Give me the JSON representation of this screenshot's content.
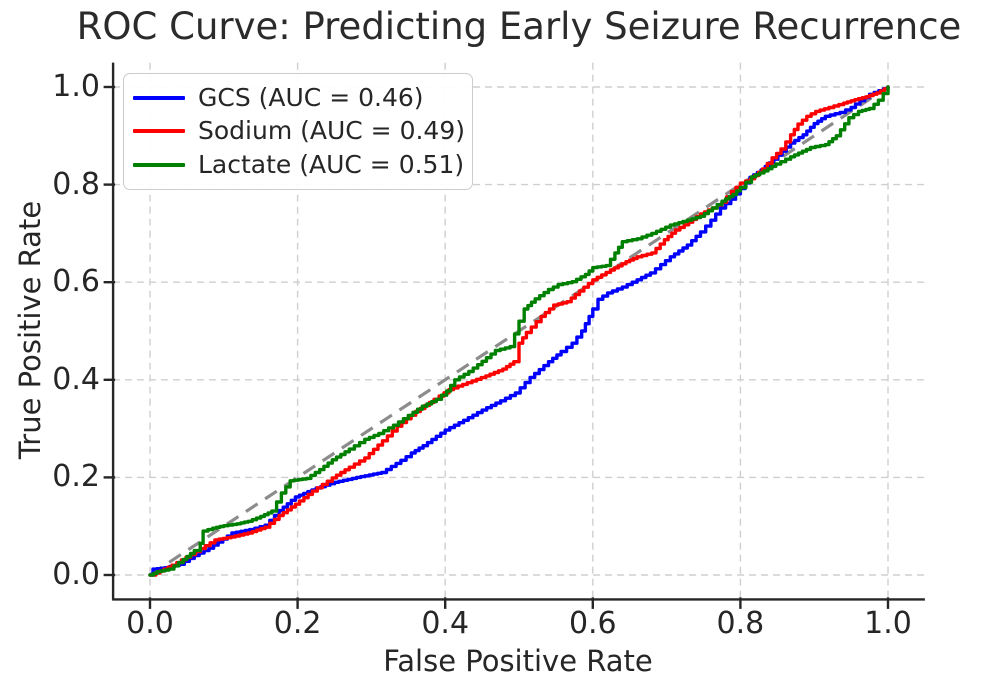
{
  "chart_data": {
    "type": "line",
    "subtype": "roc-curve",
    "title": "ROC Curve: Predicting Early Seizure Recurrence",
    "xlabel": "False Positive Rate",
    "ylabel": "True Positive Rate",
    "xlim": [
      -0.05,
      1.05
    ],
    "ylim": [
      -0.05,
      1.05
    ],
    "grid": true,
    "grid_style": "dashed",
    "legend_position": "upper left",
    "x_tick_values": [
      0.0,
      0.2,
      0.4,
      0.6,
      0.8,
      1.0
    ],
    "x_tick_labels": [
      "0.0",
      "0.2",
      "0.4",
      "0.6",
      "0.8",
      "1.0"
    ],
    "y_tick_values": [
      0.0,
      0.2,
      0.4,
      0.6,
      0.8,
      1.0
    ],
    "y_tick_labels": [
      "0.0",
      "0.2",
      "0.4",
      "0.6",
      "0.8",
      "1.0"
    ],
    "reference_line": {
      "name": "chance-diagonal",
      "style": "dashed",
      "color": "#8c8c8c",
      "points": [
        [
          0,
          0
        ],
        [
          1,
          1
        ]
      ]
    },
    "series": [
      {
        "name": "GCS (AUC = 0.46)",
        "metric": "GCS",
        "auc": 0.46,
        "color": "#0000ff",
        "points": [
          [
            0,
            0
          ],
          [
            0.004,
            0.012
          ],
          [
            0.02,
            0.015
          ],
          [
            0.04,
            0.022
          ],
          [
            0.06,
            0.04
          ],
          [
            0.08,
            0.055
          ],
          [
            0.111,
            0.086
          ],
          [
            0.135,
            0.093
          ],
          [
            0.156,
            0.102
          ],
          [
            0.175,
            0.132
          ],
          [
            0.197,
            0.16
          ],
          [
            0.225,
            0.178
          ],
          [
            0.25,
            0.19
          ],
          [
            0.28,
            0.2
          ],
          [
            0.314,
            0.21
          ],
          [
            0.34,
            0.235
          ],
          [
            0.354,
            0.25
          ],
          [
            0.37,
            0.265
          ],
          [
            0.4,
            0.297
          ],
          [
            0.425,
            0.317
          ],
          [
            0.45,
            0.338
          ],
          [
            0.475,
            0.357
          ],
          [
            0.495,
            0.373
          ],
          [
            0.515,
            0.405
          ],
          [
            0.54,
            0.437
          ],
          [
            0.557,
            0.458
          ],
          [
            0.572,
            0.475
          ],
          [
            0.585,
            0.5
          ],
          [
            0.6,
            0.545
          ],
          [
            0.607,
            0.565
          ],
          [
            0.62,
            0.578
          ],
          [
            0.64,
            0.59
          ],
          [
            0.66,
            0.605
          ],
          [
            0.678,
            0.619
          ],
          [
            0.692,
            0.636
          ],
          [
            0.705,
            0.652
          ],
          [
            0.728,
            0.676
          ],
          [
            0.746,
            0.703
          ],
          [
            0.76,
            0.727
          ],
          [
            0.773,
            0.752
          ],
          [
            0.787,
            0.77
          ],
          [
            0.8,
            0.792
          ],
          [
            0.813,
            0.815
          ],
          [
            0.828,
            0.83
          ],
          [
            0.845,
            0.852
          ],
          [
            0.868,
            0.885
          ],
          [
            0.885,
            0.902
          ],
          [
            0.9,
            0.925
          ],
          [
            0.915,
            0.94
          ],
          [
            0.935,
            0.948
          ],
          [
            0.95,
            0.958
          ],
          [
            0.962,
            0.972
          ],
          [
            0.975,
            0.985
          ],
          [
            1,
            1
          ]
        ]
      },
      {
        "name": "Sodium (AUC = 0.49)",
        "metric": "Sodium",
        "auc": 0.49,
        "color": "#ff0000",
        "points": [
          [
            0,
            0
          ],
          [
            0.008,
            0.004
          ],
          [
            0.03,
            0.02
          ],
          [
            0.055,
            0.042
          ],
          [
            0.075,
            0.06
          ],
          [
            0.088,
            0.072
          ],
          [
            0.11,
            0.078
          ],
          [
            0.133,
            0.086
          ],
          [
            0.156,
            0.098
          ],
          [
            0.175,
            0.122
          ],
          [
            0.197,
            0.145
          ],
          [
            0.22,
            0.172
          ],
          [
            0.247,
            0.199
          ],
          [
            0.27,
            0.221
          ],
          [
            0.291,
            0.24
          ],
          [
            0.315,
            0.275
          ],
          [
            0.335,
            0.305
          ],
          [
            0.36,
            0.335
          ],
          [
            0.385,
            0.36
          ],
          [
            0.405,
            0.38
          ],
          [
            0.43,
            0.394
          ],
          [
            0.455,
            0.408
          ],
          [
            0.478,
            0.422
          ],
          [
            0.493,
            0.437
          ],
          [
            0.5,
            0.475
          ],
          [
            0.51,
            0.497
          ],
          [
            0.53,
            0.53
          ],
          [
            0.547,
            0.553
          ],
          [
            0.565,
            0.56
          ],
          [
            0.582,
            0.582
          ],
          [
            0.6,
            0.605
          ],
          [
            0.624,
            0.625
          ],
          [
            0.645,
            0.642
          ],
          [
            0.66,
            0.652
          ],
          [
            0.68,
            0.66
          ],
          [
            0.697,
            0.687
          ],
          [
            0.712,
            0.707
          ],
          [
            0.73,
            0.723
          ],
          [
            0.746,
            0.74
          ],
          [
            0.762,
            0.752
          ],
          [
            0.775,
            0.764
          ],
          [
            0.788,
            0.786
          ],
          [
            0.8,
            0.803
          ],
          [
            0.814,
            0.812
          ],
          [
            0.83,
            0.832
          ],
          [
            0.843,
            0.855
          ],
          [
            0.855,
            0.873
          ],
          [
            0.868,
            0.902
          ],
          [
            0.878,
            0.924
          ],
          [
            0.89,
            0.94
          ],
          [
            0.902,
            0.95
          ],
          [
            0.92,
            0.958
          ],
          [
            0.94,
            0.967
          ],
          [
            0.955,
            0.974
          ],
          [
            0.97,
            0.98
          ],
          [
            0.985,
            0.988
          ],
          [
            1,
            1
          ]
        ]
      },
      {
        "name": "Lactate (AUC = 0.51)",
        "metric": "Lactate",
        "auc": 0.51,
        "color": "#008000",
        "points": [
          [
            0,
            0
          ],
          [
            0.01,
            0.007
          ],
          [
            0.026,
            0.012
          ],
          [
            0.045,
            0.032
          ],
          [
            0.06,
            0.05
          ],
          [
            0.068,
            0.065
          ],
          [
            0.072,
            0.09
          ],
          [
            0.085,
            0.096
          ],
          [
            0.1,
            0.101
          ],
          [
            0.118,
            0.105
          ],
          [
            0.133,
            0.11
          ],
          [
            0.15,
            0.12
          ],
          [
            0.165,
            0.131
          ],
          [
            0.178,
            0.168
          ],
          [
            0.19,
            0.193
          ],
          [
            0.212,
            0.198
          ],
          [
            0.23,
            0.216
          ],
          [
            0.247,
            0.236
          ],
          [
            0.27,
            0.258
          ],
          [
            0.291,
            0.278
          ],
          [
            0.31,
            0.29
          ],
          [
            0.33,
            0.307
          ],
          [
            0.35,
            0.327
          ],
          [
            0.369,
            0.346
          ],
          [
            0.388,
            0.36
          ],
          [
            0.402,
            0.377
          ],
          [
            0.413,
            0.4
          ],
          [
            0.432,
            0.417
          ],
          [
            0.45,
            0.438
          ],
          [
            0.468,
            0.46
          ],
          [
            0.488,
            0.468
          ],
          [
            0.5,
            0.52
          ],
          [
            0.507,
            0.545
          ],
          [
            0.522,
            0.566
          ],
          [
            0.54,
            0.585
          ],
          [
            0.553,
            0.595
          ],
          [
            0.572,
            0.601
          ],
          [
            0.59,
            0.616
          ],
          [
            0.6,
            0.63
          ],
          [
            0.618,
            0.634
          ],
          [
            0.63,
            0.66
          ],
          [
            0.64,
            0.683
          ],
          [
            0.66,
            0.689
          ],
          [
            0.68,
            0.7
          ],
          [
            0.705,
            0.717
          ],
          [
            0.728,
            0.727
          ],
          [
            0.746,
            0.735
          ],
          [
            0.762,
            0.752
          ],
          [
            0.775,
            0.766
          ],
          [
            0.79,
            0.78
          ],
          [
            0.8,
            0.794
          ],
          [
            0.815,
            0.816
          ],
          [
            0.832,
            0.828
          ],
          [
            0.848,
            0.842
          ],
          [
            0.868,
            0.857
          ],
          [
            0.895,
            0.876
          ],
          [
            0.915,
            0.882
          ],
          [
            0.93,
            0.9
          ],
          [
            0.947,
            0.937
          ],
          [
            0.96,
            0.95
          ],
          [
            0.975,
            0.956
          ],
          [
            0.987,
            0.973
          ],
          [
            1,
            1
          ]
        ]
      }
    ]
  },
  "colors": {
    "background": "#ffffff",
    "text": "#262626",
    "grid": "#cfcfcf",
    "spine": "#262626",
    "diagonal": "#8c8c8c",
    "legend_border": "#cccccc"
  }
}
